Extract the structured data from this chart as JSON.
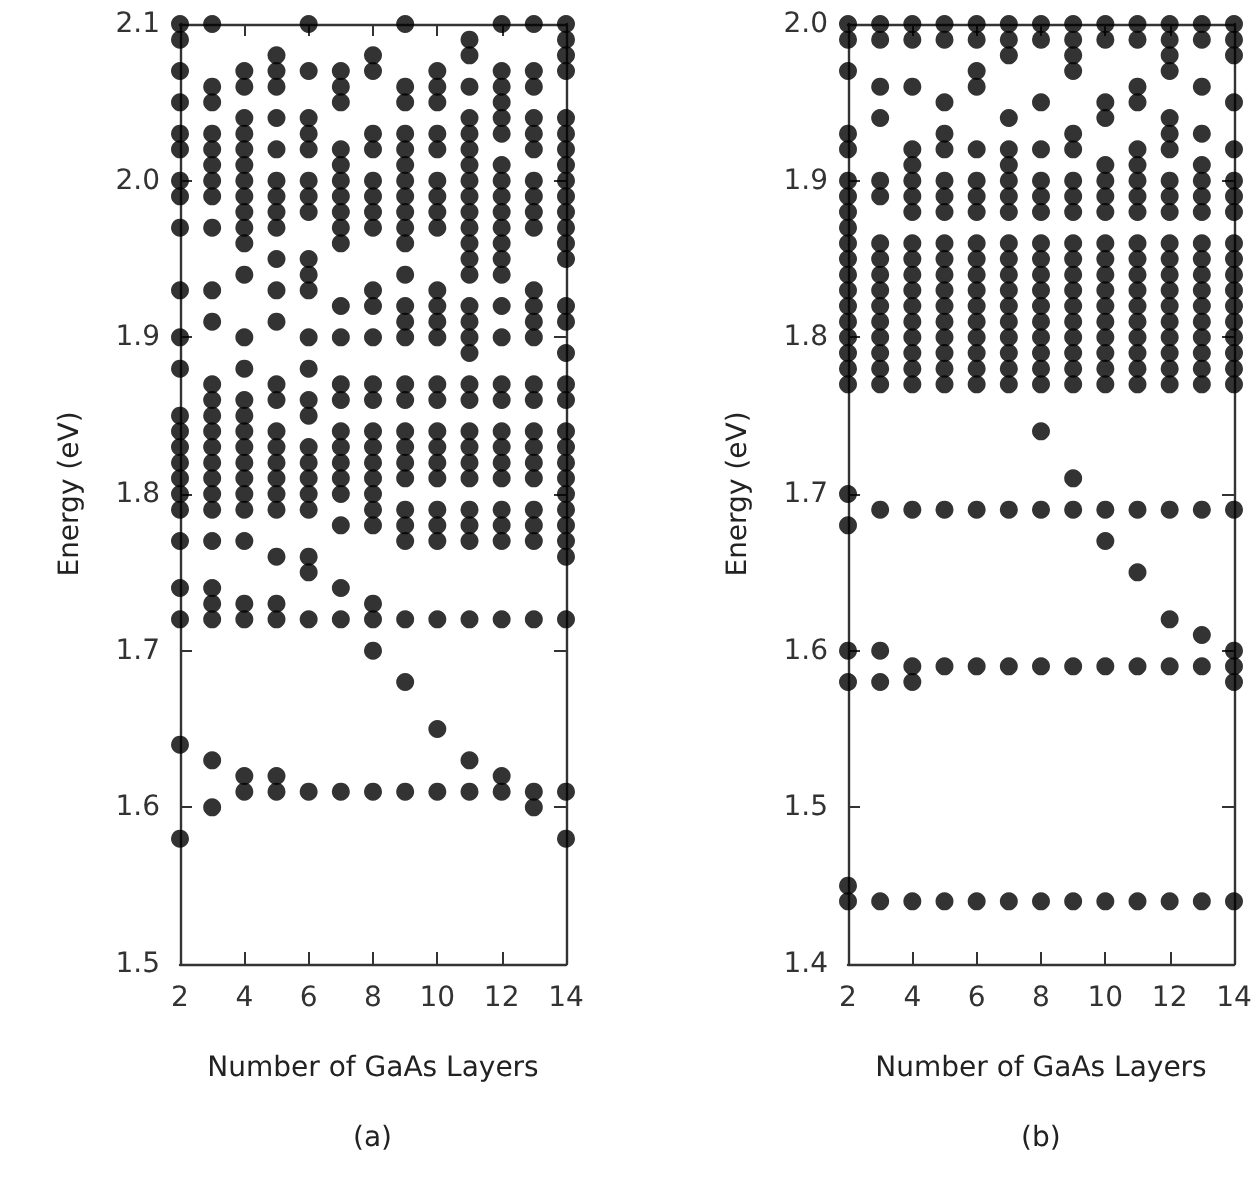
{
  "chart_data": [
    {
      "type": "scatter",
      "xlabel": "Number of GaAs Layers",
      "ylabel": "Energy (eV)",
      "annotations": [
        "(a)"
      ],
      "marker": "circle",
      "xlim": [
        2,
        14
      ],
      "ylim": [
        1.5,
        2.1
      ],
      "xticks": [
        2,
        4,
        6,
        8,
        10,
        12,
        14
      ],
      "yticks": [
        1.5,
        1.6,
        1.7,
        1.8,
        1.9,
        {
          "value": 2,
          "label": "2.0"
        },
        2.1
      ],
      "series": [
        {
          "color": "#000000",
          "x": [
            2,
            2,
            2,
            2,
            2,
            2,
            2,
            2,
            2,
            2,
            2,
            2,
            2,
            2,
            2,
            2,
            2,
            2,
            2,
            2,
            2,
            2,
            2,
            2
          ],
          "values": [
            2.1,
            2.09,
            2.07,
            2.05,
            2.03,
            2.02,
            2.0,
            1.99,
            1.97,
            1.93,
            1.9,
            1.88,
            1.85,
            1.84,
            1.83,
            1.82,
            1.81,
            1.8,
            1.79,
            1.77,
            1.74,
            1.72,
            1.64,
            1.58
          ]
        },
        {
          "color": "#000000",
          "x": [
            3,
            3,
            3,
            3,
            3,
            3,
            3,
            3,
            3,
            3,
            3,
            3,
            3,
            3,
            3,
            3,
            3,
            3,
            3,
            3,
            3,
            3,
            3,
            3,
            3,
            3
          ],
          "values": [
            2.1,
            2.06,
            2.05,
            2.03,
            2.02,
            2.01,
            2.0,
            1.99,
            1.97,
            1.93,
            1.91,
            1.87,
            1.86,
            1.85,
            1.84,
            1.83,
            1.82,
            1.81,
            1.8,
            1.79,
            1.77,
            1.74,
            1.73,
            1.72,
            1.63,
            1.6
          ]
        },
        {
          "color": "#000000",
          "x": [
            4,
            4,
            4,
            4,
            4,
            4,
            4,
            4,
            4,
            4,
            4,
            4,
            4,
            4,
            4,
            4,
            4,
            4,
            4,
            4,
            4,
            4,
            4,
            4,
            4,
            4,
            4
          ],
          "values": [
            2.07,
            2.06,
            2.04,
            2.03,
            2.02,
            2.01,
            2.0,
            1.99,
            1.98,
            1.97,
            1.96,
            1.94,
            1.9,
            1.88,
            1.86,
            1.85,
            1.84,
            1.83,
            1.82,
            1.81,
            1.8,
            1.79,
            1.77,
            1.73,
            1.72,
            1.62,
            1.61
          ]
        },
        {
          "color": "#000000",
          "x": [
            5,
            5,
            5,
            5,
            5,
            5,
            5,
            5,
            5,
            5,
            5,
            5,
            5,
            5,
            5,
            5,
            5,
            5,
            5,
            5,
            5,
            5,
            5,
            5,
            5
          ],
          "values": [
            2.08,
            2.07,
            2.06,
            2.04,
            2.02,
            2.0,
            1.99,
            1.98,
            1.97,
            1.95,
            1.93,
            1.91,
            1.87,
            1.86,
            1.84,
            1.83,
            1.82,
            1.81,
            1.8,
            1.79,
            1.76,
            1.73,
            1.72,
            1.62,
            1.61
          ]
        },
        {
          "color": "#000000",
          "x": [
            6,
            6,
            6,
            6,
            6,
            6,
            6,
            6,
            6,
            6,
            6,
            6,
            6,
            6,
            6,
            6,
            6,
            6,
            6,
            6,
            6,
            6,
            6,
            6
          ],
          "values": [
            2.1,
            2.07,
            2.04,
            2.03,
            2.02,
            2.0,
            1.99,
            1.98,
            1.95,
            1.94,
            1.93,
            1.9,
            1.88,
            1.86,
            1.85,
            1.83,
            1.82,
            1.81,
            1.8,
            1.79,
            1.76,
            1.75,
            1.72,
            1.61
          ]
        },
        {
          "color": "#000000",
          "x": [
            7,
            7,
            7,
            7,
            7,
            7,
            7,
            7,
            7,
            7,
            7,
            7,
            7,
            7,
            7,
            7,
            7,
            7,
            7,
            7,
            7,
            7,
            7
          ],
          "values": [
            2.07,
            2.06,
            2.05,
            2.02,
            2.01,
            2.0,
            1.99,
            1.98,
            1.97,
            1.96,
            1.92,
            1.9,
            1.87,
            1.86,
            1.84,
            1.83,
            1.82,
            1.81,
            1.8,
            1.78,
            1.74,
            1.72,
            1.61
          ]
        },
        {
          "color": "#000000",
          "x": [
            8,
            8,
            8,
            8,
            8,
            8,
            8,
            8,
            8,
            8,
            8,
            8,
            8,
            8,
            8,
            8,
            8,
            8,
            8,
            8,
            8,
            8,
            8,
            8
          ],
          "values": [
            2.08,
            2.07,
            2.03,
            2.02,
            2.0,
            1.99,
            1.98,
            1.97,
            1.93,
            1.92,
            1.9,
            1.87,
            1.86,
            1.84,
            1.83,
            1.82,
            1.81,
            1.8,
            1.79,
            1.78,
            1.73,
            1.72,
            1.7,
            1.61
          ]
        },
        {
          "color": "#000000",
          "x": [
            9,
            9,
            9,
            9,
            9,
            9,
            9,
            9,
            9,
            9,
            9,
            9,
            9,
            9,
            9,
            9,
            9,
            9,
            9,
            9,
            9,
            9,
            9,
            9,
            9,
            9,
            9
          ],
          "values": [
            2.1,
            2.06,
            2.05,
            2.03,
            2.02,
            2.01,
            2.0,
            1.99,
            1.98,
            1.97,
            1.96,
            1.94,
            1.92,
            1.91,
            1.9,
            1.87,
            1.86,
            1.84,
            1.83,
            1.82,
            1.81,
            1.79,
            1.78,
            1.77,
            1.72,
            1.68,
            1.61
          ]
        },
        {
          "color": "#000000",
          "x": [
            10,
            10,
            10,
            10,
            10,
            10,
            10,
            10,
            10,
            10,
            10,
            10,
            10,
            10,
            10,
            10,
            10,
            10,
            10,
            10,
            10,
            10,
            10,
            10,
            10
          ],
          "values": [
            2.07,
            2.06,
            2.05,
            2.03,
            2.02,
            2.0,
            1.99,
            1.98,
            1.97,
            1.93,
            1.92,
            1.91,
            1.9,
            1.87,
            1.86,
            1.84,
            1.83,
            1.82,
            1.81,
            1.79,
            1.78,
            1.77,
            1.72,
            1.65,
            1.61
          ]
        },
        {
          "color": "#000000",
          "x": [
            11,
            11,
            11,
            11,
            11,
            11,
            11,
            11,
            11,
            11,
            11,
            11,
            11,
            11,
            11,
            11,
            11,
            11,
            11,
            11,
            11,
            11,
            11,
            11,
            11,
            11,
            11,
            11,
            11,
            11
          ],
          "values": [
            2.09,
            2.08,
            2.06,
            2.04,
            2.03,
            2.02,
            2.01,
            2.0,
            1.99,
            1.98,
            1.97,
            1.96,
            1.95,
            1.94,
            1.92,
            1.91,
            1.9,
            1.89,
            1.87,
            1.86,
            1.84,
            1.83,
            1.82,
            1.81,
            1.79,
            1.78,
            1.77,
            1.72,
            1.63,
            1.61
          ]
        },
        {
          "color": "#000000",
          "x": [
            12,
            12,
            12,
            12,
            12,
            12,
            12,
            12,
            12,
            12,
            12,
            12,
            12,
            12,
            12,
            12,
            12,
            12,
            12,
            12,
            12,
            12,
            12,
            12,
            12,
            12,
            12,
            12
          ],
          "values": [
            2.1,
            2.07,
            2.06,
            2.05,
            2.04,
            2.03,
            2.01,
            2.0,
            1.99,
            1.98,
            1.97,
            1.96,
            1.95,
            1.94,
            1.92,
            1.9,
            1.87,
            1.86,
            1.84,
            1.83,
            1.82,
            1.81,
            1.79,
            1.78,
            1.77,
            1.72,
            1.62,
            1.61
          ]
        },
        {
          "color": "#000000",
          "x": [
            13,
            13,
            13,
            13,
            13,
            13,
            13,
            13,
            13,
            13,
            13,
            13,
            13,
            13,
            13,
            13,
            13,
            13,
            13,
            13,
            13,
            13,
            13,
            13,
            13,
            13
          ],
          "values": [
            2.1,
            2.07,
            2.06,
            2.04,
            2.03,
            2.02,
            2.0,
            1.99,
            1.98,
            1.97,
            1.93,
            1.92,
            1.91,
            1.9,
            1.87,
            1.86,
            1.84,
            1.83,
            1.82,
            1.81,
            1.79,
            1.78,
            1.77,
            1.72,
            1.61,
            1.6
          ]
        },
        {
          "color": "#000000",
          "x": [
            14,
            14,
            14,
            14,
            14,
            14,
            14,
            14,
            14,
            14,
            14,
            14,
            14,
            14,
            14,
            14,
            14,
            14,
            14,
            14,
            14,
            14,
            14,
            14,
            14,
            14,
            14,
            14,
            14,
            14,
            14
          ],
          "values": [
            2.1,
            2.09,
            2.08,
            2.07,
            2.04,
            2.03,
            2.02,
            2.01,
            2.0,
            1.99,
            1.98,
            1.97,
            1.96,
            1.95,
            1.92,
            1.91,
            1.89,
            1.87,
            1.86,
            1.84,
            1.83,
            1.82,
            1.81,
            1.8,
            1.79,
            1.78,
            1.77,
            1.76,
            1.72,
            1.61,
            1.58
          ]
        }
      ]
    },
    {
      "type": "scatter",
      "xlabel": "Number of GaAs Layers",
      "ylabel": "Energy (eV)",
      "annotations": [
        "(b)"
      ],
      "marker": "circle",
      "xlim": [
        2,
        14
      ],
      "ylim": [
        1.4,
        2.0
      ],
      "xticks": [
        2,
        4,
        6,
        8,
        10,
        12,
        14
      ],
      "yticks": [
        1.4,
        1.5,
        1.6,
        1.7,
        1.8,
        1.9,
        {
          "value": 2,
          "label": "2.0"
        }
      ],
      "series": [
        {
          "color": "#000000",
          "x": [
            2,
            2,
            2,
            2,
            2,
            2,
            2,
            2,
            2,
            2,
            2,
            2,
            2,
            2,
            2,
            2,
            2,
            2,
            2,
            2,
            2,
            2,
            2,
            2,
            2
          ],
          "values": [
            2.0,
            1.99,
            1.97,
            1.93,
            1.92,
            1.9,
            1.89,
            1.88,
            1.87,
            1.86,
            1.85,
            1.84,
            1.83,
            1.82,
            1.81,
            1.8,
            1.79,
            1.78,
            1.77,
            1.7,
            1.68,
            1.6,
            1.58,
            1.45,
            1.44
          ]
        },
        {
          "color": "#000000",
          "x": [
            3,
            3,
            3,
            3,
            3,
            3,
            3,
            3,
            3,
            3,
            3,
            3,
            3,
            3,
            3,
            3,
            3,
            3,
            3,
            3
          ],
          "values": [
            2.0,
            1.99,
            1.96,
            1.94,
            1.9,
            1.89,
            1.86,
            1.85,
            1.84,
            1.83,
            1.82,
            1.81,
            1.8,
            1.79,
            1.78,
            1.77,
            1.69,
            1.6,
            1.58,
            1.44
          ]
        },
        {
          "color": "#000000",
          "x": [
            4,
            4,
            4,
            4,
            4,
            4,
            4,
            4,
            4,
            4,
            4,
            4,
            4,
            4,
            4,
            4,
            4,
            4,
            4,
            4,
            4,
            4
          ],
          "values": [
            2.0,
            1.99,
            1.96,
            1.92,
            1.91,
            1.9,
            1.89,
            1.88,
            1.86,
            1.85,
            1.84,
            1.83,
            1.82,
            1.81,
            1.8,
            1.79,
            1.78,
            1.77,
            1.69,
            1.59,
            1.58,
            1.44
          ]
        },
        {
          "color": "#000000",
          "x": [
            5,
            5,
            5,
            5,
            5,
            5,
            5,
            5,
            5,
            5,
            5,
            5,
            5,
            5,
            5,
            5,
            5,
            5,
            5,
            5,
            5
          ],
          "values": [
            2.0,
            1.99,
            1.95,
            1.93,
            1.92,
            1.9,
            1.89,
            1.88,
            1.86,
            1.85,
            1.84,
            1.83,
            1.82,
            1.81,
            1.8,
            1.79,
            1.78,
            1.77,
            1.69,
            1.59,
            1.44
          ]
        },
        {
          "color": "#000000",
          "x": [
            6,
            6,
            6,
            6,
            6,
            6,
            6,
            6,
            6,
            6,
            6,
            6,
            6,
            6,
            6,
            6,
            6,
            6,
            6,
            6,
            6
          ],
          "values": [
            2.0,
            1.99,
            1.97,
            1.96,
            1.92,
            1.9,
            1.89,
            1.88,
            1.86,
            1.85,
            1.84,
            1.83,
            1.82,
            1.81,
            1.8,
            1.79,
            1.78,
            1.77,
            1.69,
            1.59,
            1.44
          ]
        },
        {
          "color": "#000000",
          "x": [
            7,
            7,
            7,
            7,
            7,
            7,
            7,
            7,
            7,
            7,
            7,
            7,
            7,
            7,
            7,
            7,
            7,
            7,
            7,
            7,
            7,
            7
          ],
          "values": [
            2.0,
            1.99,
            1.98,
            1.94,
            1.92,
            1.91,
            1.9,
            1.89,
            1.88,
            1.86,
            1.85,
            1.84,
            1.83,
            1.82,
            1.81,
            1.8,
            1.79,
            1.78,
            1.77,
            1.69,
            1.59,
            1.44
          ]
        },
        {
          "color": "#000000",
          "x": [
            8,
            8,
            8,
            8,
            8,
            8,
            8,
            8,
            8,
            8,
            8,
            8,
            8,
            8,
            8,
            8,
            8,
            8,
            8,
            8,
            8
          ],
          "values": [
            2.0,
            1.99,
            1.95,
            1.92,
            1.9,
            1.89,
            1.88,
            1.86,
            1.85,
            1.84,
            1.83,
            1.82,
            1.81,
            1.8,
            1.79,
            1.78,
            1.77,
            1.74,
            1.69,
            1.59,
            1.44
          ]
        },
        {
          "color": "#000000",
          "x": [
            9,
            9,
            9,
            9,
            9,
            9,
            9,
            9,
            9,
            9,
            9,
            9,
            9,
            9,
            9,
            9,
            9,
            9,
            9,
            9,
            9,
            9,
            9
          ],
          "values": [
            2.0,
            1.99,
            1.98,
            1.97,
            1.93,
            1.92,
            1.9,
            1.89,
            1.88,
            1.86,
            1.85,
            1.84,
            1.83,
            1.82,
            1.81,
            1.8,
            1.79,
            1.78,
            1.77,
            1.71,
            1.69,
            1.59,
            1.44
          ]
        },
        {
          "color": "#000000",
          "x": [
            10,
            10,
            10,
            10,
            10,
            10,
            10,
            10,
            10,
            10,
            10,
            10,
            10,
            10,
            10,
            10,
            10,
            10,
            10,
            10,
            10,
            10
          ],
          "values": [
            2.0,
            1.99,
            1.95,
            1.94,
            1.91,
            1.9,
            1.89,
            1.88,
            1.86,
            1.85,
            1.84,
            1.83,
            1.82,
            1.81,
            1.8,
            1.79,
            1.78,
            1.77,
            1.69,
            1.67,
            1.59,
            1.44
          ]
        },
        {
          "color": "#000000",
          "x": [
            11,
            11,
            11,
            11,
            11,
            11,
            11,
            11,
            11,
            11,
            11,
            11,
            11,
            11,
            11,
            11,
            11,
            11,
            11,
            11,
            11,
            11,
            11
          ],
          "values": [
            2.0,
            1.99,
            1.96,
            1.95,
            1.92,
            1.91,
            1.9,
            1.89,
            1.88,
            1.86,
            1.85,
            1.84,
            1.83,
            1.82,
            1.81,
            1.8,
            1.79,
            1.78,
            1.77,
            1.69,
            1.65,
            1.59,
            1.44
          ]
        },
        {
          "color": "#000000",
          "x": [
            12,
            12,
            12,
            12,
            12,
            12,
            12,
            12,
            12,
            12,
            12,
            12,
            12,
            12,
            12,
            12,
            12,
            12,
            12,
            12,
            12,
            12,
            12,
            12
          ],
          "values": [
            2.0,
            1.99,
            1.98,
            1.97,
            1.94,
            1.93,
            1.92,
            1.9,
            1.89,
            1.88,
            1.86,
            1.85,
            1.84,
            1.83,
            1.82,
            1.81,
            1.8,
            1.79,
            1.78,
            1.77,
            1.69,
            1.62,
            1.59,
            1.44
          ]
        },
        {
          "color": "#000000",
          "x": [
            13,
            13,
            13,
            13,
            13,
            13,
            13,
            13,
            13,
            13,
            13,
            13,
            13,
            13,
            13,
            13,
            13,
            13,
            13,
            13,
            13,
            13
          ],
          "values": [
            2.0,
            1.99,
            1.96,
            1.93,
            1.91,
            1.9,
            1.89,
            1.88,
            1.86,
            1.85,
            1.84,
            1.83,
            1.82,
            1.81,
            1.8,
            1.79,
            1.78,
            1.77,
            1.69,
            1.61,
            1.59,
            1.44
          ]
        },
        {
          "color": "#000000",
          "x": [
            14,
            14,
            14,
            14,
            14,
            14,
            14,
            14,
            14,
            14,
            14,
            14,
            14,
            14,
            14,
            14,
            14,
            14,
            14,
            14,
            14,
            14,
            14
          ],
          "values": [
            2.0,
            1.99,
            1.98,
            1.95,
            1.92,
            1.9,
            1.89,
            1.88,
            1.86,
            1.85,
            1.84,
            1.83,
            1.82,
            1.81,
            1.8,
            1.79,
            1.78,
            1.77,
            1.69,
            1.6,
            1.59,
            1.58,
            1.44
          ]
        }
      ]
    }
  ]
}
